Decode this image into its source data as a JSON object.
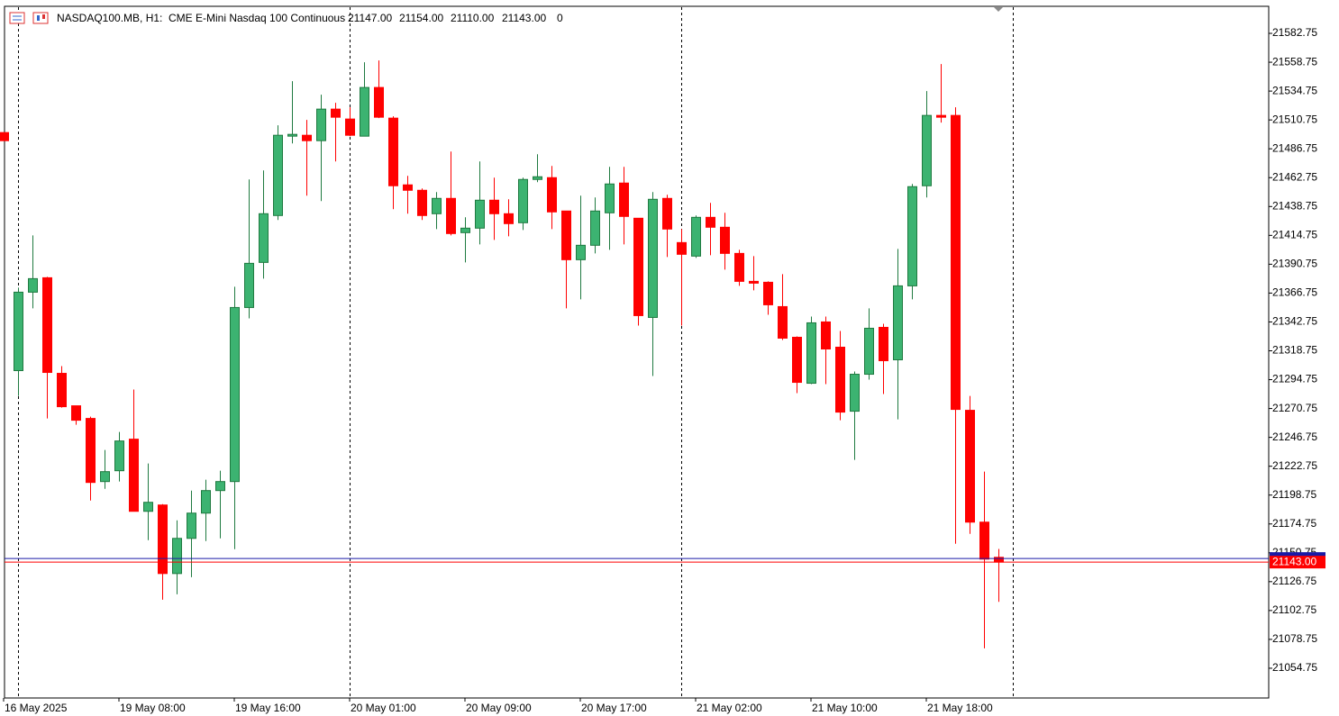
{
  "chart_data": {
    "type": "candlestick",
    "title": "NASDAQ100.MB, H1:",
    "subtitle": "CME E-Mini Nasdaq 100 Continuous",
    "ohlc_labels": [
      "21147.00",
      "21154.00",
      "21110.00",
      "21143.00"
    ],
    "volume_label": "0",
    "categories": [
      "16 May 2025",
      null,
      null,
      null,
      null,
      null,
      null,
      null,
      "19 May 08:00",
      null,
      null,
      null,
      null,
      null,
      null,
      null,
      "19 May 16:00",
      null,
      null,
      null,
      null,
      null,
      null,
      null,
      "20 May 01:00",
      null,
      null,
      null,
      null,
      null,
      null,
      null,
      "20 May 09:00",
      null,
      null,
      null,
      null,
      null,
      null,
      null,
      "20 May 17:00",
      null,
      null,
      null,
      null,
      null,
      null,
      null,
      "21 May 02:00",
      null,
      null,
      null,
      null,
      null,
      null,
      null,
      "21 May 10:00",
      null,
      null,
      null,
      null,
      null,
      null,
      null,
      "21 May 18:00",
      null,
      null,
      null,
      null,
      null
    ],
    "open": [
      21500.25,
      21302.25,
      21367.5,
      21379.5,
      21300,
      21273,
      21262.5,
      21210,
      21219,
      21245.25,
      21185.25,
      21190.5,
      21133.5,
      21162.75,
      21183.75,
      21202.5,
      21210,
      21354.75,
      21392.25,
      21431.25,
      21497.25,
      21498,
      21493.5,
      21519.75,
      21511.5,
      21497.25,
      21537.75,
      21512.25,
      21456.75,
      21452.25,
      21432.75,
      21445.5,
      21417,
      21420.75,
      21444,
      21432.75,
      21425.25,
      21461.25,
      21462.75,
      21435,
      21394.5,
      21406.5,
      21433.5,
      21458.25,
      21429,
      21346.5,
      21445.5,
      21408.75,
      21397.5,
      21429.75,
      21421.5,
      21399.75,
      21376.5,
      21375.75,
      21355.5,
      21330,
      21291.75,
      21342.75,
      21321.75,
      21268.5,
      21299.25,
      21338.25,
      21311.25,
      21372.75,
      21456,
      21514.5,
      21514.5,
      21269.25,
      21176.25,
      21147
    ],
    "high": [
      21500.25,
      21371.25,
      21414.75,
      21380.25,
      21306,
      21273,
      21264,
      21236.25,
      21251.25,
      21286.5,
      21225,
      21191.25,
      21177.75,
      21202.5,
      21211.5,
      21219,
      21372,
      21461.25,
      21468.75,
      21506.25,
      21543,
      21510.75,
      21531.75,
      21525,
      21521.25,
      21558.75,
      21560.25,
      21513.75,
      21464.25,
      21453.75,
      21450.75,
      21484.5,
      21429.75,
      21476.25,
      21462.75,
      21444.75,
      21462.75,
      21482.25,
      21472.5,
      21435,
      21447.75,
      21446.25,
      21471.75,
      21471.75,
      21429,
      21450.75,
      21448.5,
      21420,
      21431.25,
      21441.75,
      21433.5,
      21402.75,
      21397.5,
      21376.5,
      21382.5,
      21330.75,
      21347.25,
      21347.25,
      21335.25,
      21301.5,
      21354,
      21341.25,
      21403.5,
      21457.5,
      21534.75,
      21557.25,
      21521.25,
      21281.25,
      21218.25,
      21154
    ],
    "low": [
      21493.5,
      21281.25,
      21354,
      21262.5,
      21271.5,
      21257.25,
      21194.25,
      21204,
      21210,
      21185.25,
      21161.25,
      21111.75,
      21116.25,
      21130.5,
      21160.5,
      21162.75,
      21153.75,
      21345.75,
      21378.75,
      21427.5,
      21491.25,
      21447.75,
      21443.25,
      21476.25,
      21497.25,
      21497.25,
      21512.25,
      21436.5,
      21432.75,
      21427.5,
      21420,
      21414.75,
      21392.25,
      21407.25,
      21411,
      21414,
      21419.25,
      21459,
      21420,
      21354,
      21361.5,
      21399.75,
      21402.75,
      21407.25,
      21339.75,
      21297.75,
      21396.75,
      21339.75,
      21396,
      21398.25,
      21386.25,
      21372.75,
      21369,
      21348.75,
      21327.75,
      21283.5,
      21291,
      21291,
      21261,
      21228,
      21294.75,
      21282.75,
      21261.75,
      21361.5,
      21446.25,
      21508.5,
      21158.25,
      21166.5,
      21071.25,
      21110
    ],
    "close": [
      21493.5,
      21367.5,
      21378.75,
      21300.75,
      21272.25,
      21261,
      21209.25,
      21218.25,
      21243.75,
      21185.25,
      21192.75,
      21133.5,
      21162.75,
      21183.75,
      21202.5,
      21210,
      21354.75,
      21391.5,
      21432.75,
      21498,
      21498.75,
      21493.5,
      21519.75,
      21513,
      21498,
      21537.75,
      21513,
      21456,
      21452.25,
      21431.25,
      21445.5,
      21416.25,
      21420.75,
      21444,
      21432.75,
      21424.5,
      21461.25,
      21463.5,
      21434.25,
      21394.5,
      21406.5,
      21435,
      21457.5,
      21430.5,
      21348,
      21444.75,
      21420,
      21399,
      21429.75,
      21421.5,
      21399.75,
      21376.5,
      21375,
      21357,
      21329.25,
      21292.5,
      21342,
      21320.25,
      21267.75,
      21299.25,
      21337.5,
      21310.5,
      21372.75,
      21455.25,
      21514.5,
      21513,
      21270,
      21176.25,
      21145.5,
      21143
    ],
    "up_color": "#3cb371",
    "up_wick_color": "#1f7a40",
    "down_color": "#ff0000",
    "ylim": [
      21030,
      21605.25
    ],
    "yticks": [
      21582.75,
      21558.75,
      21534.75,
      21510.75,
      21486.75,
      21462.75,
      21438.75,
      21414.75,
      21390.75,
      21366.75,
      21342.75,
      21318.75,
      21294.75,
      21270.75,
      21246.75,
      21222.75,
      21198.75,
      21174.75,
      21150.75,
      21126.75,
      21102.75,
      21078.75,
      21054.75
    ],
    "last_price": {
      "value": 21143,
      "label": "21143.00"
    },
    "last_price_color": "#ff0000",
    "ask_price": 21146,
    "ask_color": "#1a1aa6"
  }
}
